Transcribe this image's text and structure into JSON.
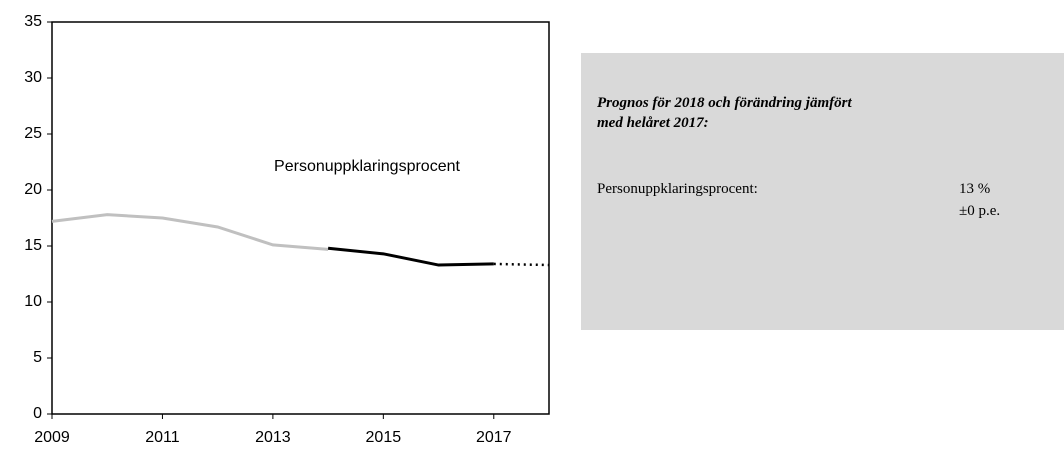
{
  "chart_data": {
    "type": "line",
    "annotation": "Personuppklaringsprocent",
    "x": [
      2009,
      2010,
      2011,
      2012,
      2013,
      2014,
      2015,
      2016,
      2017,
      2018
    ],
    "series": [
      {
        "color": "#c0c0c0",
        "style": "solid",
        "values": [
          17.2,
          17.8,
          17.5,
          16.7,
          15.1,
          14.7,
          null,
          null,
          null,
          null
        ]
      },
      {
        "color": "#000000",
        "style": "solid",
        "values": [
          null,
          null,
          null,
          null,
          null,
          14.8,
          14.3,
          13.3,
          13.4,
          null
        ]
      },
      {
        "color": "#000000",
        "style": "dotted",
        "values": [
          null,
          null,
          null,
          null,
          null,
          null,
          null,
          null,
          13.4,
          13.3
        ]
      }
    ],
    "xlim": [
      2009,
      2018
    ],
    "xticks": [
      2009,
      2011,
      2013,
      2015,
      2017
    ],
    "ylim": [
      0,
      35
    ],
    "yticks": [
      0,
      5,
      10,
      15,
      20,
      25,
      30,
      35
    ],
    "grid": false
  },
  "panel": {
    "title": "Prognos för 2018 och förändring jämfört med helåret 2017:",
    "label": "Personuppklaringsprocent:",
    "value": "13 %",
    "change": "±0 p.e."
  }
}
